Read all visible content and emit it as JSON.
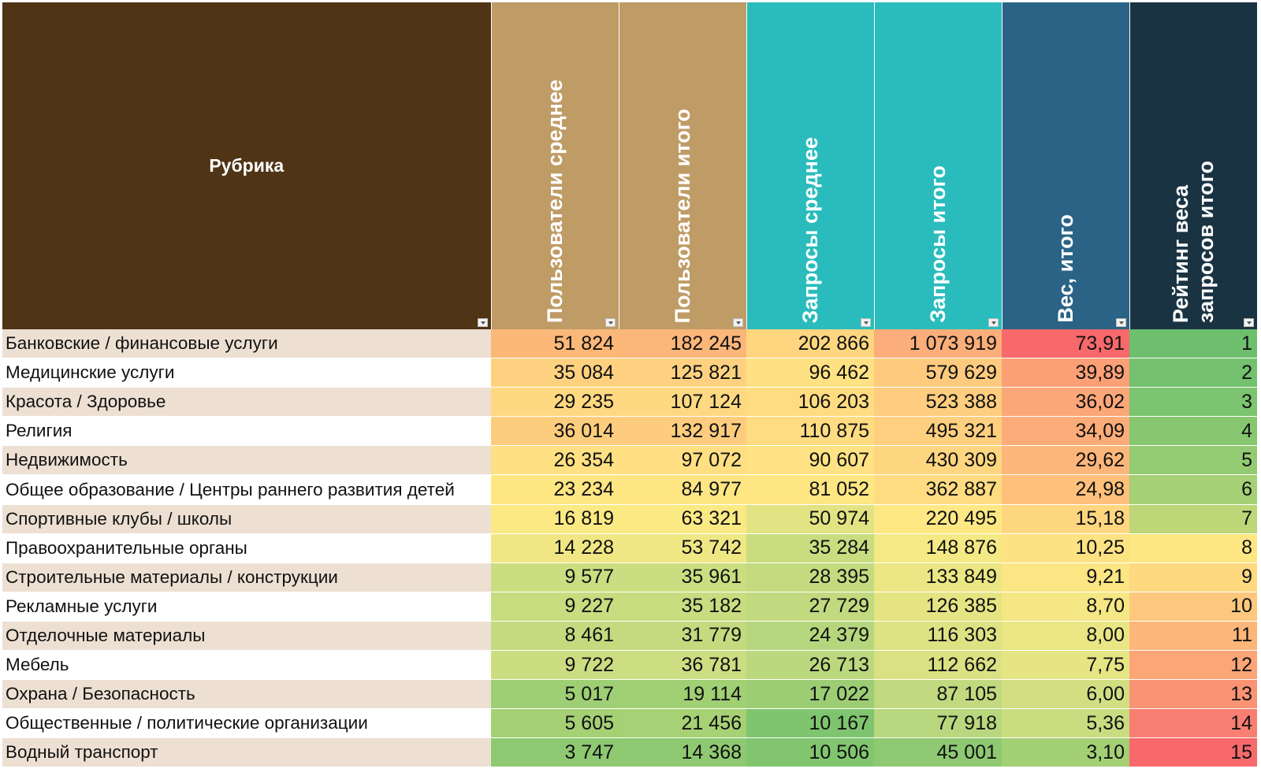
{
  "table": {
    "headers": [
      "Рубрика",
      "Пользователи среднее",
      "Пользователи итого",
      "Запросы среднее",
      "Запросы итого",
      "Вес, итого",
      "Рейтинг веса\nзапросов итого"
    ],
    "header_colors": [
      "#4f3416",
      "#bf9b66",
      "#bf9b66",
      "#2abcbc",
      "#2abcbc",
      "#2a6386",
      "#1a3342"
    ],
    "rows": [
      {
        "name": "Банковские / финансовые услуги",
        "users_avg": "51 824",
        "users_total": "182 245",
        "req_avg": "202 866",
        "req_total": "1 073 919",
        "weight": "73,91",
        "rank": "1",
        "colors": [
          "#fbb879",
          "#fbb67a",
          "#ffd67f",
          "#fbae79",
          "#f7696b",
          "#6dbf6d"
        ]
      },
      {
        "name": "Медицинские услуги",
        "users_avg": "35 084",
        "users_total": "125 821",
        "req_avg": "96 462",
        "req_total": "579 629",
        "weight": "39,89",
        "rank": "2",
        "colors": [
          "#fdd17f",
          "#fdd17f",
          "#fee182",
          "#fdca7e",
          "#fba076",
          "#73c16e"
        ]
      },
      {
        "name": "Красота / Здоровье",
        "users_avg": "29 235",
        "users_total": "107 124",
        "req_avg": "106 203",
        "req_total": "523 388",
        "weight": "36,02",
        "rank": "3",
        "colors": [
          "#ffd981",
          "#ffd981",
          "#ffdc81",
          "#fecd7f",
          "#fca777",
          "#7cc46f"
        ]
      },
      {
        "name": "Религия",
        "users_avg": "36 014",
        "users_total": "132 917",
        "req_avg": "110 875",
        "req_total": "495 321",
        "weight": "34,09",
        "rank": "4",
        "colors": [
          "#fdcd7e",
          "#fdcc7e",
          "#ffdb81",
          "#fecf7f",
          "#fcac78",
          "#86c770"
        ]
      },
      {
        "name": "Недвижимость",
        "users_avg": "26 354",
        "users_total": "97 072",
        "req_avg": "90 607",
        "req_total": "430 309",
        "weight": "29,62",
        "rank": "5",
        "colors": [
          "#ffe082",
          "#ffdf82",
          "#ffe283",
          "#ffd680",
          "#fdb67a",
          "#93cb72"
        ]
      },
      {
        "name": "Общее образование / Центры раннего развития детей",
        "users_avg": "23 234",
        "users_total": "84 977",
        "req_avg": "81 052",
        "req_total": "362 887",
        "weight": "24,98",
        "rank": "6",
        "colors": [
          "#fee683",
          "#fee683",
          "#fee683",
          "#ffdc81",
          "#fec07b",
          "#a5d074"
        ]
      },
      {
        "name": "Спортивные клубы / школы",
        "users_avg": "16 819",
        "users_total": "63 321",
        "req_avg": "50 974",
        "req_total": "220 495",
        "weight": "15,18",
        "rank": "7",
        "colors": [
          "#fbea84",
          "#fbe984",
          "#e2e383",
          "#fee883",
          "#fed680",
          "#bcd678"
        ]
      },
      {
        "name": "Правоохранительные органы",
        "users_avg": "14 228",
        "users_total": "53 742",
        "req_avg": "35 284",
        "req_total": "148 876",
        "weight": "10,25",
        "rank": "8",
        "colors": [
          "#f0e784",
          "#efe784",
          "#c9dc80",
          "#f4e984",
          "#fde283",
          "#fee783"
        ]
      },
      {
        "name": "Строительные материалы / конструкции",
        "users_avg": "9 577",
        "users_total": "35 961",
        "req_avg": "28 395",
        "req_total": "133 849",
        "weight": "9,21",
        "rank": "9",
        "colors": [
          "#cbdd81",
          "#cbdd81",
          "#c3da7f",
          "#ebe684",
          "#fce583",
          "#fed980"
        ]
      },
      {
        "name": "Рекламные услуги",
        "users_avg": "9 227",
        "users_total": "35 182",
        "req_avg": "27 729",
        "req_total": "126 385",
        "weight": "8,70",
        "rank": "10",
        "colors": [
          "#c8dc80",
          "#c8dc80",
          "#c1d97f",
          "#e5e483",
          "#f5e784",
          "#fdc87d"
        ]
      },
      {
        "name": "Отделочные материалы",
        "users_avg": "8 461",
        "users_total": "31 779",
        "req_avg": "24 379",
        "req_total": "116 303",
        "weight": "8,00",
        "rank": "11",
        "colors": [
          "#c3da7f",
          "#c3da7f",
          "#b6d67d",
          "#dde283",
          "#eae684",
          "#fdb67a"
        ]
      },
      {
        "name": "Мебель",
        "users_avg": "9 722",
        "users_total": "36 781",
        "req_avg": "26 713",
        "req_total": "112 662",
        "weight": "7,75",
        "rank": "12",
        "colors": [
          "#ccdd81",
          "#cddd81",
          "#bcd87e",
          "#d9e183",
          "#e6e583",
          "#fca577"
        ]
      },
      {
        "name": "Охрана / Безопасность",
        "users_avg": "5 017",
        "users_total": "19 114",
        "req_avg": "17 022",
        "req_total": "87 105",
        "weight": "6,00",
        "rank": "13",
        "colors": [
          "#9fcf74",
          "#a0cf74",
          "#9ccd75",
          "#c1d97f",
          "#d1df82",
          "#fa9374"
        ]
      },
      {
        "name": "Общественные / политические организации",
        "users_avg": "5 605",
        "users_total": "21 456",
        "req_avg": "10 167",
        "req_total": "77 918",
        "weight": "5,36",
        "rank": "14",
        "colors": [
          "#a5d074",
          "#a7d175",
          "#7fc56f",
          "#b9d77e",
          "#c9dc80",
          "#f87f71"
        ]
      },
      {
        "name": "Водный транспорт",
        "users_avg": "3 747",
        "users_total": "14 368",
        "req_avg": "10 506",
        "req_total": "45 001",
        "weight": "3,10",
        "rank": "15",
        "colors": [
          "#8ec972",
          "#8ec972",
          "#81c56f",
          "#8ec972",
          "#a4d074",
          "#f7696b"
        ]
      }
    ]
  }
}
